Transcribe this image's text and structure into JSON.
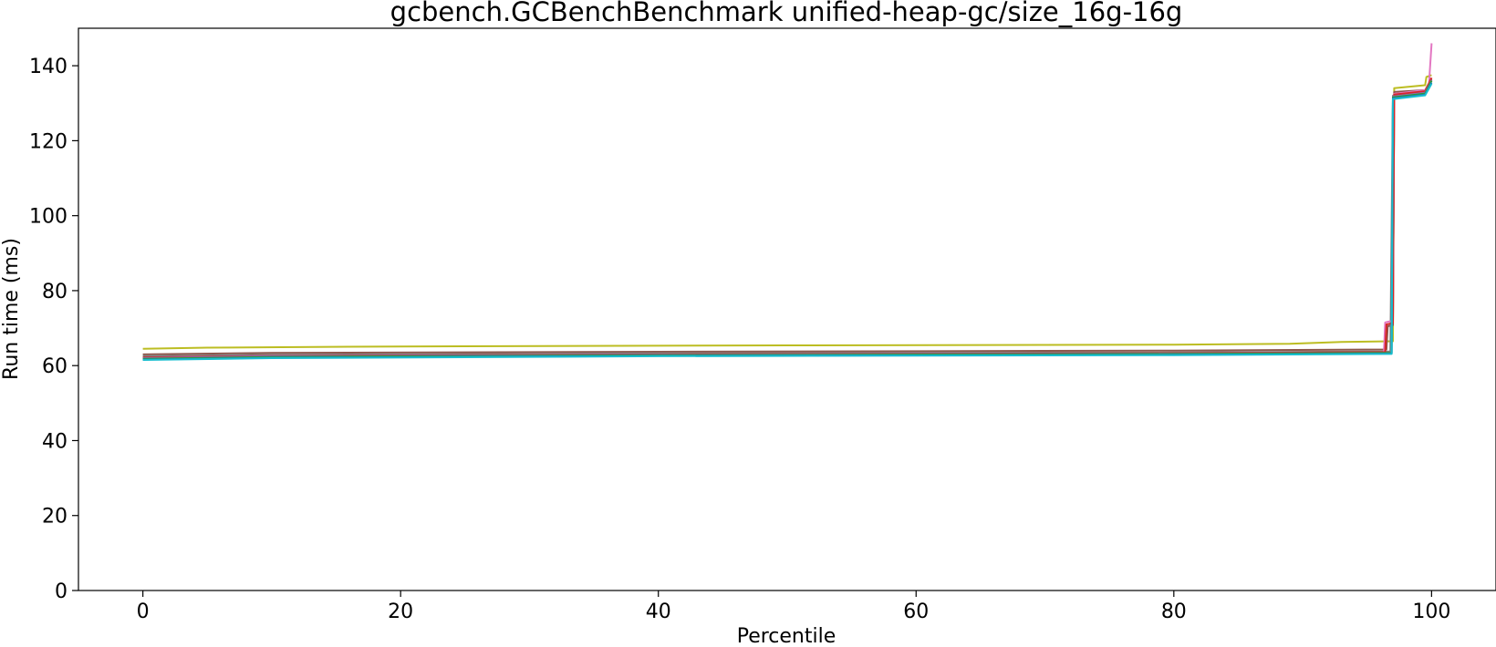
{
  "chart_data": {
    "type": "line",
    "title": "gcbench.GCBenchBenchmark unified-heap-gc/size_16g-16g",
    "xlabel": "Percentile",
    "ylabel": "Run time (ms)",
    "xlim": [
      -5,
      105
    ],
    "ylim": [
      0,
      150
    ],
    "x_ticks": [
      0,
      20,
      40,
      60,
      80,
      100
    ],
    "y_ticks": [
      0,
      20,
      40,
      60,
      80,
      100,
      120,
      140
    ],
    "grid": false,
    "legend": "none",
    "series": [
      {
        "color": "#bcbd22",
        "points": [
          [
            0,
            64.5
          ],
          [
            5,
            64.8
          ],
          [
            20,
            65.1
          ],
          [
            50,
            65.4
          ],
          [
            80,
            65.6
          ],
          [
            89,
            65.8
          ],
          [
            93,
            66.3
          ],
          [
            97,
            66.5
          ],
          [
            97.1,
            134
          ],
          [
            99.5,
            134.8
          ],
          [
            99.6,
            137
          ],
          [
            100,
            137.5
          ]
        ]
      },
      {
        "color": "#8c564b",
        "points": [
          [
            0,
            63.0
          ],
          [
            10,
            63.4
          ],
          [
            40,
            63.7
          ],
          [
            80,
            64.0
          ],
          [
            96.5,
            64.3
          ],
          [
            96.6,
            70.5
          ],
          [
            97,
            70.8
          ],
          [
            97.1,
            133
          ],
          [
            99.5,
            133.5
          ],
          [
            100,
            136.5
          ]
        ]
      },
      {
        "color": "#7f7f7f",
        "points": [
          [
            0,
            62.5
          ],
          [
            10,
            62.9
          ],
          [
            40,
            63.3
          ],
          [
            80,
            63.5
          ],
          [
            96.8,
            63.8
          ],
          [
            97,
            132
          ],
          [
            99.5,
            133
          ],
          [
            100,
            136
          ]
        ]
      },
      {
        "color": "#e377c2",
        "points": [
          [
            0,
            62.0
          ],
          [
            10,
            62.4
          ],
          [
            40,
            62.9
          ],
          [
            80,
            63.2
          ],
          [
            96.3,
            63.5
          ],
          [
            96.4,
            71.5
          ],
          [
            97,
            72
          ],
          [
            97.1,
            132.5
          ],
          [
            99.5,
            133.5
          ],
          [
            99.8,
            135
          ],
          [
            100,
            146
          ]
        ]
      },
      {
        "color": "#d62728",
        "points": [
          [
            0,
            62.2
          ],
          [
            10,
            62.6
          ],
          [
            40,
            63.0
          ],
          [
            80,
            63.3
          ],
          [
            96.4,
            63.6
          ],
          [
            96.5,
            71
          ],
          [
            97,
            71.3
          ],
          [
            97.1,
            132.3
          ],
          [
            99.5,
            133.2
          ],
          [
            100,
            136.8
          ]
        ]
      },
      {
        "color": "#9467bd",
        "points": [
          [
            0,
            62.0
          ],
          [
            10,
            62.5
          ],
          [
            40,
            62.9
          ],
          [
            80,
            63.2
          ],
          [
            96.9,
            63.4
          ],
          [
            97,
            131.8
          ],
          [
            99.5,
            132.8
          ],
          [
            100,
            136.2
          ]
        ]
      },
      {
        "color": "#2ca02c",
        "points": [
          [
            0,
            61.8
          ],
          [
            10,
            62.3
          ],
          [
            40,
            62.8
          ],
          [
            80,
            63.1
          ],
          [
            96.9,
            63.4
          ],
          [
            97,
            131.6
          ],
          [
            99.5,
            132.6
          ],
          [
            100,
            136
          ]
        ]
      },
      {
        "color": "#1f77b4",
        "points": [
          [
            0,
            61.6
          ],
          [
            10,
            62.1
          ],
          [
            40,
            62.6
          ],
          [
            80,
            62.9
          ],
          [
            96.9,
            63.2
          ],
          [
            97,
            131.3
          ],
          [
            99.5,
            132.3
          ],
          [
            100,
            135.5
          ]
        ]
      },
      {
        "color": "#17becf",
        "points": [
          [
            0,
            61.5
          ],
          [
            10,
            62.0
          ],
          [
            40,
            62.5
          ],
          [
            80,
            62.8
          ],
          [
            96.9,
            63.1
          ],
          [
            97,
            131.1
          ],
          [
            99.5,
            132.1
          ],
          [
            100,
            135.2
          ]
        ]
      }
    ]
  }
}
